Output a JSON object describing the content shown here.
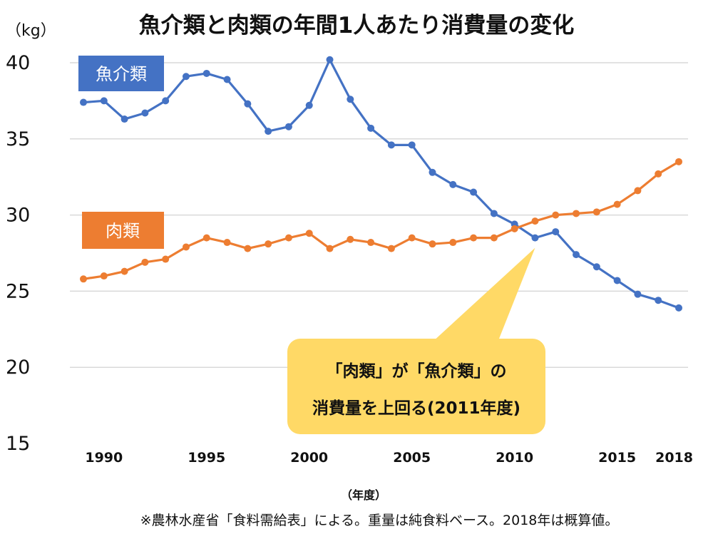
{
  "chart_data": {
    "type": "line",
    "title": "魚介類と肉類の年間1人あたり消費量の変化",
    "unit_label": "（kg）",
    "xlabel": "（年度）",
    "source_note": "※農林水産省「食料需給表」による。重量は純食料ベース。2018年は概算値。",
    "x": [
      1989,
      1990,
      1991,
      1992,
      1993,
      1994,
      1995,
      1996,
      1997,
      1998,
      1999,
      2000,
      2001,
      2002,
      2003,
      2004,
      2005,
      2006,
      2007,
      2008,
      2009,
      2010,
      2011,
      2012,
      2013,
      2014,
      2015,
      2016,
      2017,
      2018
    ],
    "xlim": [
      1989,
      2018
    ],
    "ylim": [
      15,
      40
    ],
    "y_ticks": [
      "40",
      "35",
      "30",
      "25",
      "20",
      "15"
    ],
    "x_ticks": [
      "1990",
      "1995",
      "2000",
      "2005",
      "2010",
      "2015",
      "2018"
    ],
    "grid": true,
    "series": [
      {
        "name": "魚介類",
        "color": "#4472c4",
        "values": [
          37.4,
          37.5,
          36.3,
          36.7,
          37.5,
          39.1,
          39.3,
          38.9,
          37.3,
          35.5,
          35.8,
          37.2,
          40.2,
          37.6,
          35.7,
          34.6,
          34.6,
          32.8,
          32.0,
          31.5,
          30.1,
          29.4,
          28.5,
          28.9,
          27.4,
          26.6,
          25.7,
          24.8,
          24.4,
          23.9
        ]
      },
      {
        "name": "肉類",
        "color": "#ed7d31",
        "values": [
          25.8,
          26.0,
          26.3,
          26.9,
          27.1,
          27.9,
          28.5,
          28.2,
          27.8,
          28.1,
          28.5,
          28.8,
          27.8,
          28.4,
          28.2,
          27.8,
          28.5,
          28.1,
          28.2,
          28.5,
          28.5,
          29.1,
          29.6,
          30.0,
          30.1,
          30.2,
          30.7,
          31.6,
          32.7,
          33.5
        ]
      }
    ],
    "legend": {
      "fish_label": "魚介類",
      "meat_label": "肉類"
    },
    "annotation": {
      "line1": "「肉類」が「魚介類」の",
      "line2": "消費量を上回る(2011年度)",
      "year": 2011,
      "color": "#ffd966"
    }
  }
}
